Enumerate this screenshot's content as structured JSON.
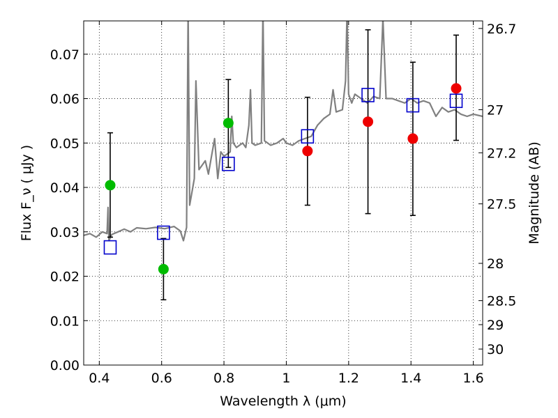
{
  "chart_data": {
    "type": "scatter",
    "xlabel": "Wavelength λ (μm)",
    "ylabel": "Flux F_ν ( μJy )",
    "y2label": "Magnitude (AB)",
    "xlim": [
      0.35,
      1.63
    ],
    "ylim": [
      0.0,
      0.0775
    ],
    "x_ticks": [
      0.4,
      0.6,
      0.8,
      1.0,
      1.2,
      1.4,
      1.6
    ],
    "x_tick_labels": [
      "0.4",
      "0.6",
      "0.8",
      "1",
      "1.2",
      "1.4",
      "1.6"
    ],
    "y_ticks": [
      0.0,
      0.01,
      0.02,
      0.03,
      0.04,
      0.05,
      0.06,
      0.07
    ],
    "y_tick_labels": [
      "0.00",
      "0.01",
      "0.02",
      "0.03",
      "0.04",
      "0.05",
      "0.06",
      "0.07"
    ],
    "y2_ticks": [
      {
        "label": "26.7",
        "flux": 0.0758
      },
      {
        "label": "27",
        "flux": 0.0575
      },
      {
        "label": "27.2",
        "flux": 0.0478
      },
      {
        "label": "27.5",
        "flux": 0.0363
      },
      {
        "label": "28",
        "flux": 0.0229
      },
      {
        "label": "28.5",
        "flux": 0.0145
      },
      {
        "label": "29",
        "flux": 0.0091
      },
      {
        "label": "30",
        "flux": 0.0036
      }
    ],
    "grid": true,
    "model_spectrum": {
      "color": "#808080",
      "points": [
        [
          0.35,
          0.0292
        ],
        [
          0.37,
          0.0296
        ],
        [
          0.39,
          0.0288
        ],
        [
          0.41,
          0.03
        ],
        [
          0.425,
          0.0296
        ],
        [
          0.428,
          0.0355
        ],
        [
          0.431,
          0.028
        ],
        [
          0.44,
          0.0294
        ],
        [
          0.46,
          0.03
        ],
        [
          0.48,
          0.0306
        ],
        [
          0.5,
          0.03
        ],
        [
          0.52,
          0.0309
        ],
        [
          0.55,
          0.0307
        ],
        [
          0.58,
          0.031
        ],
        [
          0.61,
          0.0307
        ],
        [
          0.64,
          0.0312
        ],
        [
          0.66,
          0.0302
        ],
        [
          0.67,
          0.028
        ],
        [
          0.68,
          0.031
        ],
        [
          0.685,
          0.08
        ],
        [
          0.69,
          0.036
        ],
        [
          0.7,
          0.04
        ],
        [
          0.705,
          0.042
        ],
        [
          0.71,
          0.064
        ],
        [
          0.72,
          0.044
        ],
        [
          0.74,
          0.046
        ],
        [
          0.75,
          0.043
        ],
        [
          0.76,
          0.047
        ],
        [
          0.77,
          0.051
        ],
        [
          0.78,
          0.042
        ],
        [
          0.79,
          0.048
        ],
        [
          0.8,
          0.047
        ],
        [
          0.82,
          0.048
        ],
        [
          0.825,
          0.056
        ],
        [
          0.83,
          0.05
        ],
        [
          0.84,
          0.049
        ],
        [
          0.85,
          0.0495
        ],
        [
          0.86,
          0.05
        ],
        [
          0.87,
          0.049
        ],
        [
          0.88,
          0.054
        ],
        [
          0.885,
          0.062
        ],
        [
          0.89,
          0.05
        ],
        [
          0.9,
          0.0495
        ],
        [
          0.92,
          0.05
        ],
        [
          0.925,
          0.08
        ],
        [
          0.93,
          0.0505
        ],
        [
          0.95,
          0.0495
        ],
        [
          0.97,
          0.05
        ],
        [
          0.99,
          0.051
        ],
        [
          1.0,
          0.05
        ],
        [
          1.02,
          0.0495
        ],
        [
          1.04,
          0.0505
        ],
        [
          1.06,
          0.051
        ],
        [
          1.08,
          0.0515
        ],
        [
          1.1,
          0.054
        ],
        [
          1.12,
          0.0555
        ],
        [
          1.14,
          0.0565
        ],
        [
          1.15,
          0.062
        ],
        [
          1.16,
          0.057
        ],
        [
          1.18,
          0.0575
        ],
        [
          1.19,
          0.064
        ],
        [
          1.195,
          0.08
        ],
        [
          1.2,
          0.061
        ],
        [
          1.21,
          0.059
        ],
        [
          1.22,
          0.061
        ],
        [
          1.24,
          0.06
        ],
        [
          1.26,
          0.059
        ],
        [
          1.28,
          0.0605
        ],
        [
          1.3,
          0.06
        ],
        [
          1.31,
          0.078
        ],
        [
          1.32,
          0.06
        ],
        [
          1.34,
          0.06
        ],
        [
          1.36,
          0.0595
        ],
        [
          1.38,
          0.059
        ],
        [
          1.4,
          0.06
        ],
        [
          1.42,
          0.059
        ],
        [
          1.44,
          0.0595
        ],
        [
          1.46,
          0.059
        ],
        [
          1.48,
          0.056
        ],
        [
          1.5,
          0.058
        ],
        [
          1.52,
          0.057
        ],
        [
          1.54,
          0.0575
        ],
        [
          1.56,
          0.0565
        ],
        [
          1.58,
          0.056
        ],
        [
          1.6,
          0.0565
        ],
        [
          1.63,
          0.056
        ]
      ]
    },
    "model_photometry": {
      "color": "#0000cc",
      "points": [
        {
          "x": 0.435,
          "y": 0.0265
        },
        {
          "x": 0.606,
          "y": 0.0298
        },
        {
          "x": 0.814,
          "y": 0.0453
        },
        {
          "x": 1.068,
          "y": 0.0515
        },
        {
          "x": 1.262,
          "y": 0.0608
        },
        {
          "x": 1.406,
          "y": 0.0585
        },
        {
          "x": 1.545,
          "y": 0.0595
        }
      ]
    },
    "observed_optical": {
      "color": "#00bb00",
      "points": [
        {
          "x": 0.435,
          "y": 0.0405,
          "err": [
            0.0288,
            0.0523
          ]
        },
        {
          "x": 0.606,
          "y": 0.0216,
          "err": [
            0.0147,
            0.0285
          ]
        },
        {
          "x": 0.814,
          "y": 0.0545,
          "err": [
            0.0445,
            0.0643
          ]
        }
      ]
    },
    "observed_nir": {
      "color": "#ee0000",
      "points": [
        {
          "x": 1.068,
          "y": 0.0482,
          "err": [
            0.036,
            0.0603
          ]
        },
        {
          "x": 1.262,
          "y": 0.0548,
          "err": [
            0.0341,
            0.0755
          ]
        },
        {
          "x": 1.406,
          "y": 0.051,
          "err": [
            0.0337,
            0.0682
          ]
        },
        {
          "x": 1.545,
          "y": 0.0623,
          "err": [
            0.0506,
            0.0743
          ]
        }
      ]
    }
  }
}
